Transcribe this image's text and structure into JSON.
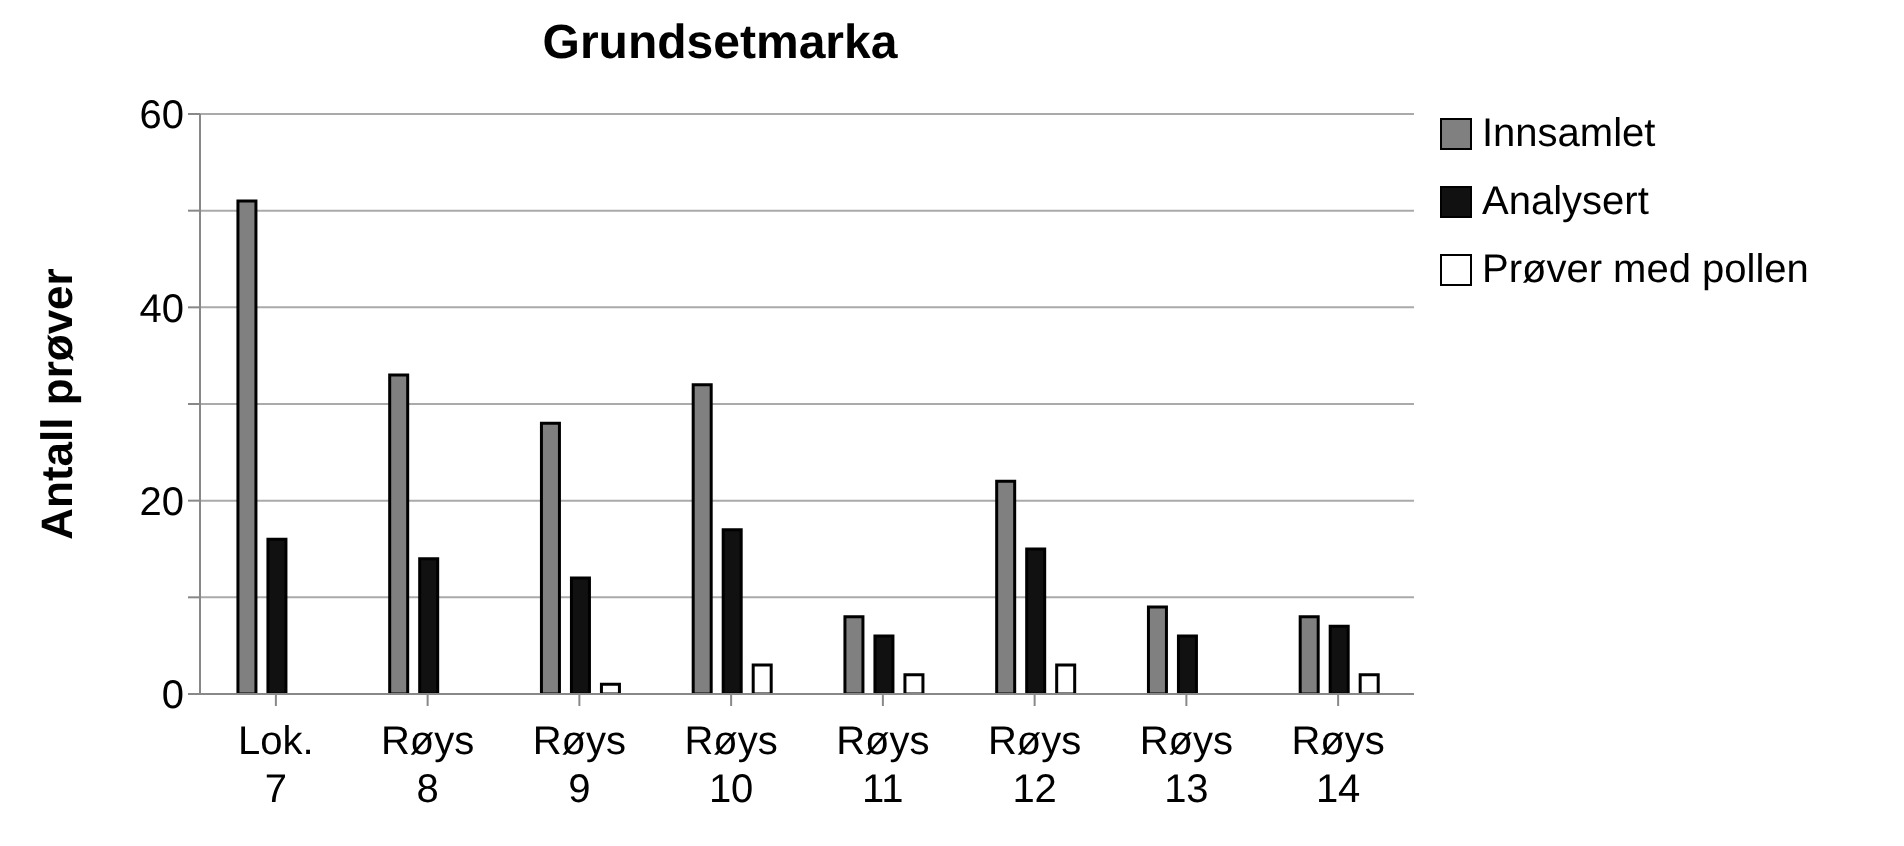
{
  "chart_data": {
    "type": "bar",
    "title": "Grundsetmarka",
    "ylabel": "Antall prøver",
    "categories": [
      "Lok. 7",
      "Røys 8",
      "Røys 9",
      "Røys 10",
      "Røys 11",
      "Røys 12",
      "Røys 13",
      "Røys 14"
    ],
    "series": [
      {
        "name": "Innsamlet",
        "color": "#808080",
        "values": [
          51,
          33,
          28,
          32,
          8,
          22,
          9,
          8
        ]
      },
      {
        "name": "Analysert",
        "color": "#111111",
        "values": [
          16,
          14,
          12,
          17,
          6,
          15,
          6,
          7
        ]
      },
      {
        "name": "Prøver med pollen",
        "color": "#ffffff",
        "values": [
          0,
          0,
          1,
          3,
          2,
          3,
          0,
          2
        ]
      }
    ],
    "ylim": [
      0,
      60
    ],
    "yticks": [
      0,
      {
        "value": 10,
        "label": null
      },
      20,
      {
        "value": 30,
        "label": null
      },
      40,
      {
        "value": 50,
        "label": null
      },
      60
    ],
    "grid": "y",
    "legend": "right"
  }
}
